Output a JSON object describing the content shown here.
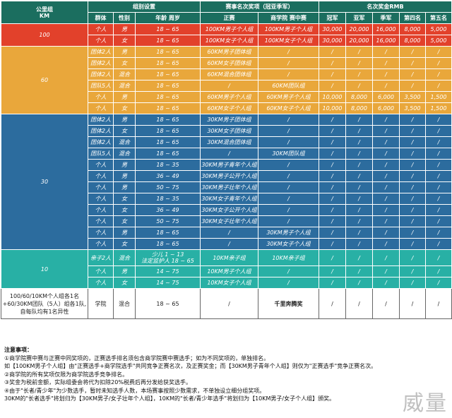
{
  "header": {
    "km_title": "公里组",
    "km_sub": "KM",
    "group_settings": "组别设置",
    "award_items": "赛事名次奖项（冠亚季军）",
    "prize_title": "名次奖金RMB",
    "cols": [
      "群体",
      "性别",
      "年龄 周岁",
      "正赛",
      "商学院 赛中赛",
      "冠军",
      "亚军",
      "季军",
      "第四名",
      "第五名"
    ]
  },
  "groups": [
    {
      "km": "100",
      "cls": "grp100",
      "rows": [
        [
          "个人",
          "男",
          "18 ~ 65",
          "100KM男子个人组",
          "100KM男子个人组",
          "30,000",
          "20,000",
          "16,000",
          "8,000",
          "5,000"
        ],
        [
          "个人",
          "女",
          "18 ~ 65",
          "100KM女子个人组",
          "100KM女子个人组",
          "30,000",
          "20,000",
          "16,000",
          "8,000",
          "5,000"
        ]
      ]
    },
    {
      "km": "60",
      "cls": "grp60",
      "rows": [
        [
          "团体2人",
          "男",
          "18 ~ 65",
          "60KM男子团体组",
          "/",
          "/",
          "/",
          "/",
          "/",
          "/"
        ],
        [
          "团体2人",
          "女",
          "18 ~ 65",
          "60KM女子团体组",
          "/",
          "/",
          "/",
          "/",
          "/",
          "/"
        ],
        [
          "团体2人",
          "混合",
          "18 ~ 65",
          "60KM混合团体组",
          "/",
          "/",
          "/",
          "/",
          "/",
          "/"
        ],
        [
          "团队5人",
          "混合",
          "18 ~ 65",
          "/",
          "60KM团队组",
          "/",
          "/",
          "/",
          "/",
          "/"
        ],
        [
          "个人",
          "男",
          "18 ~ 65",
          "60KM男子个人组",
          "60KM男子个人组",
          "10,000",
          "8,000",
          "6,000",
          "3,500",
          "1,500"
        ],
        [
          "个人",
          "女",
          "18 ~ 65",
          "60KM女子个人组",
          "60KM女子个人组",
          "10,000",
          "8,000",
          "6,000",
          "3,500",
          "1,500"
        ]
      ]
    },
    {
      "km": "30",
      "cls": "grp30",
      "rows": [
        [
          "团体2人",
          "男",
          "18 ~ 65",
          "30KM男子团体组",
          "/",
          "/",
          "/",
          "/",
          "/",
          "/"
        ],
        [
          "团体2人",
          "女",
          "18 ~ 65",
          "30KM女子团体组",
          "/",
          "/",
          "/",
          "/",
          "/",
          "/"
        ],
        [
          "团体2人",
          "混合",
          "18 ~ 65",
          "30KM混合团体组",
          "/",
          "/",
          "/",
          "/",
          "/",
          "/"
        ],
        [
          "团队5人",
          "混合",
          "18 ~ 65",
          "/",
          "30KM团队组",
          "/",
          "/",
          "/",
          "/",
          "/"
        ],
        [
          "个人",
          "男",
          "18 ~ 35",
          "30KM男子青年个人组",
          "/",
          "/",
          "/",
          "/",
          "/",
          "/"
        ],
        [
          "个人",
          "男",
          "36 ~ 49",
          "30KM男子公开个人组",
          "/",
          "/",
          "/",
          "/",
          "/",
          "/"
        ],
        [
          "个人",
          "男",
          "50 ~ 75",
          "30KM男子壮年个人组",
          "/",
          "/",
          "/",
          "/",
          "/",
          "/"
        ],
        [
          "个人",
          "女",
          "18 ~ 35",
          "30KM女子青年个人组",
          "/",
          "/",
          "/",
          "/",
          "/",
          "/"
        ],
        [
          "个人",
          "女",
          "36 ~ 49",
          "30KM女子公开个人组",
          "/",
          "/",
          "/",
          "/",
          "/",
          "/"
        ],
        [
          "个人",
          "女",
          "50 ~ 75",
          "30KM女子壮年个人组",
          "/",
          "/",
          "/",
          "/",
          "/",
          "/"
        ],
        [
          "个人",
          "男",
          "18 ~ 65",
          "/",
          "30KM男子个人组",
          "/",
          "/",
          "/",
          "/",
          "/"
        ],
        [
          "个人",
          "女",
          "18 ~ 65",
          "/",
          "30KM女子个人组",
          "/",
          "/",
          "/",
          "/",
          "/"
        ]
      ]
    },
    {
      "km": "10",
      "cls": "grp10",
      "rows": [
        [
          "亲子2人",
          "混合",
          "少儿 1 ~ 13\n法定监护人 18 ~ 65",
          "10KM亲子组",
          "10KM亲子组",
          "/",
          "/",
          "/",
          "/",
          "/"
        ],
        [
          "个人",
          "男",
          "14 ~ 75",
          "10KM男子个人组",
          "/",
          "/",
          "/",
          "/",
          "/",
          "/"
        ],
        [
          "个人",
          "女",
          "14 ~ 75",
          "10KM女子个人组",
          "/",
          "/",
          "/",
          "/",
          "/",
          "/"
        ]
      ]
    }
  ],
  "extra_row": {
    "desc": "100/60/10KM个人组各1名\n+60/30KM团队（5人）组各1队,\n自每队均有1名异性",
    "cells": [
      "学院",
      "混合",
      "18 ~ 65",
      "/",
      "千里奔腾奖",
      "/",
      "/",
      "/",
      "/",
      "/"
    ]
  },
  "notes": [
    "注意事项：",
    "①商学院赛中赛与正赛中同奖项的，正赛选手排名须包含商学院赛中赛选手；如为不同奖项的，单独排名。",
    "   如【100KM男子个人组】由\"正赛选手+商学院选手\"共同竞争正赛名次，及正赛奖金；而【30KM男子青年个人组】则仅为\"正赛选手\"竞争正赛名次。",
    "②商学院的所有奖项仅限为商学院选手竞争排名。",
    "③奖金为税前金额，实际组委会将代为扣除20%税费后再分发给获奖选手。",
    "④由于\"长者/青少年\"为少数选手，暂时未知选手人数，本场赛事按照少数需求，不单独设立细分组奖项。",
    "   30KM的\"长者选手\"将划归为【30KM男子/女子壮年个人组】，10KM的\"长者/青少年选手\"将划归为【10KM男子/女子个人组】颁奖。"
  ],
  "watermark": "威量"
}
